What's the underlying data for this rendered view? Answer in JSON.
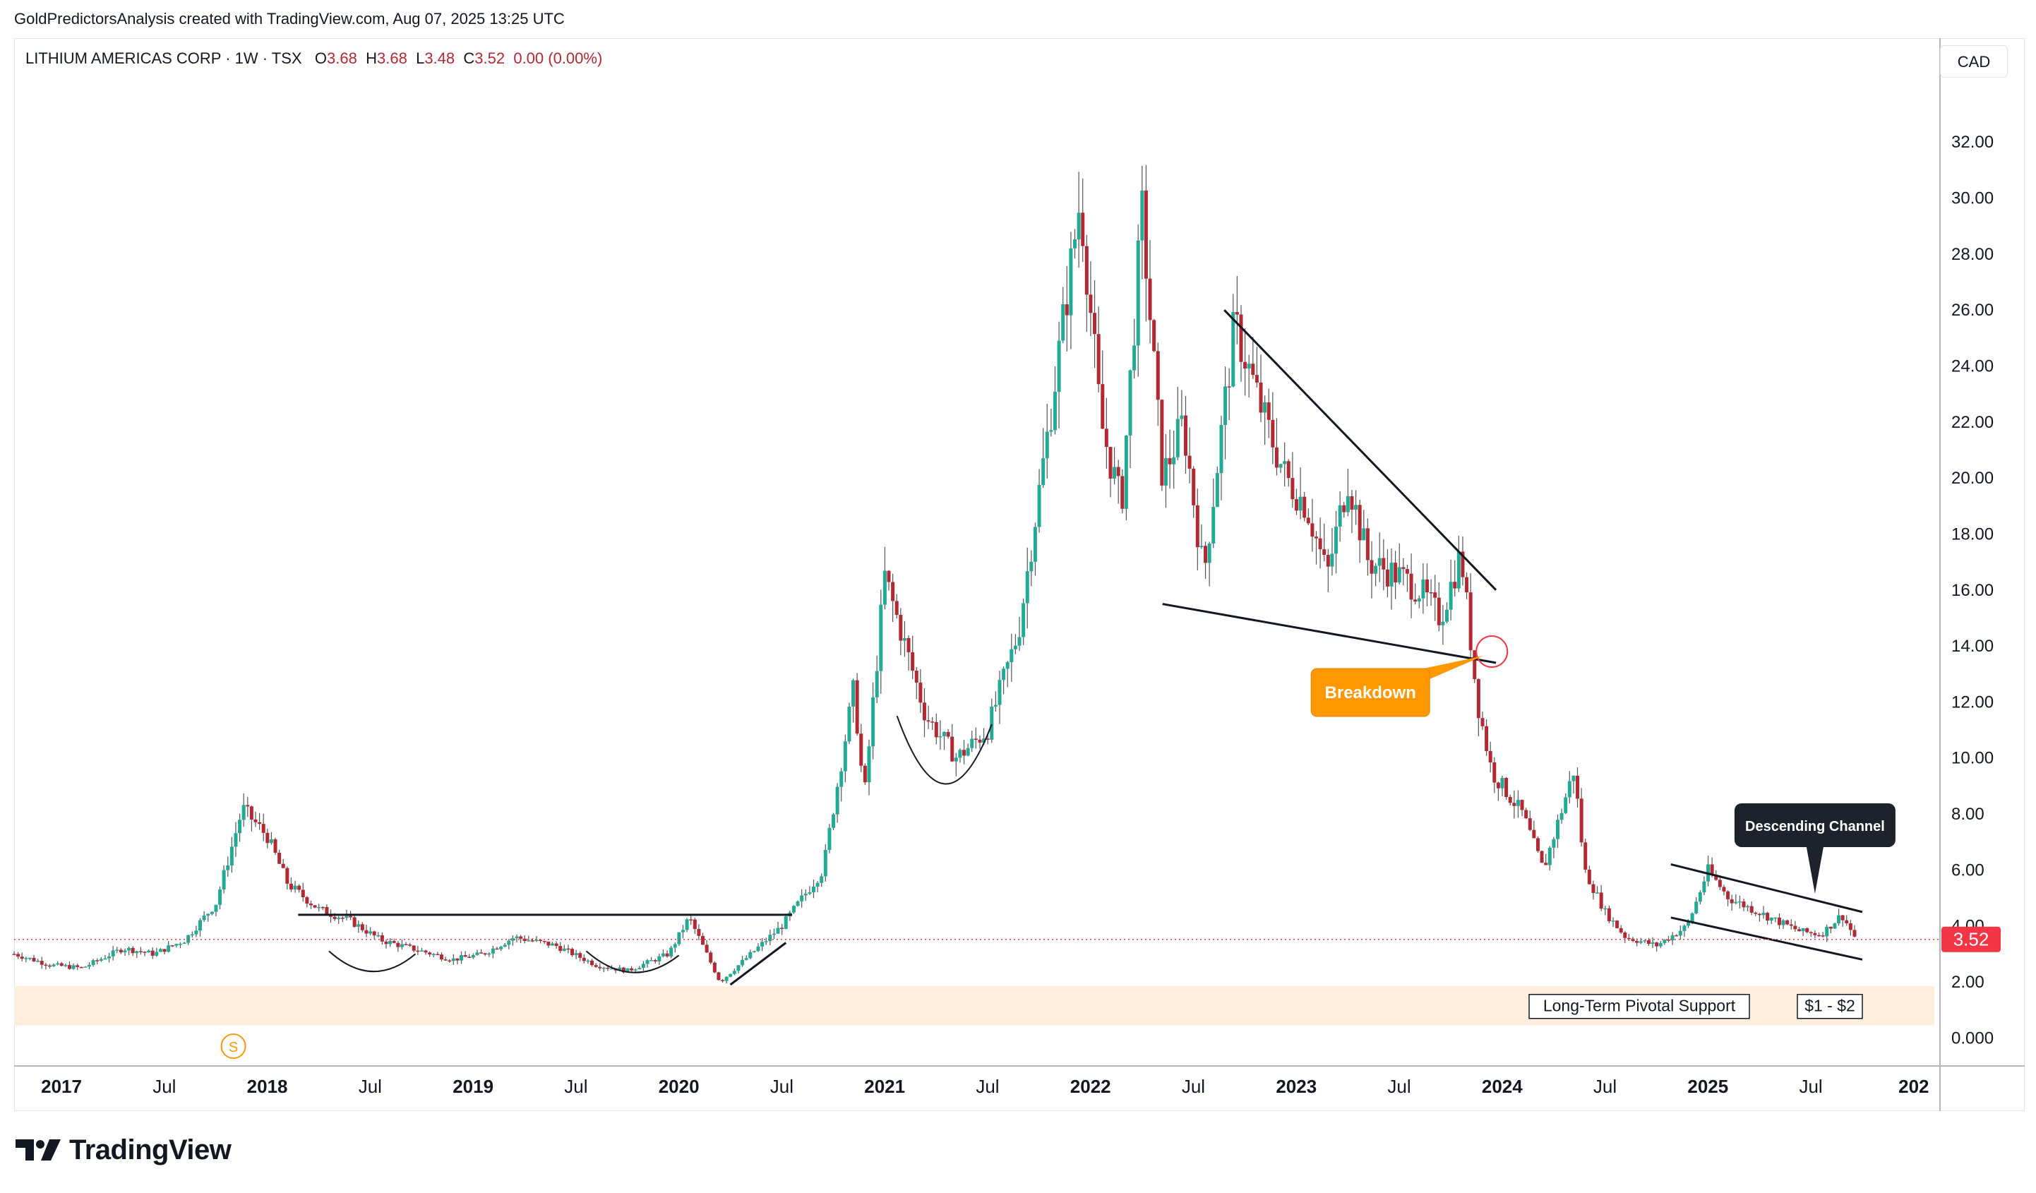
{
  "header": {
    "credit": "GoldPredictorsAnalysis created with TradingView.com, Aug 07, 2025 13:25 UTC"
  },
  "legend": {
    "symbol": "LITHIUM AMERICAS CORP · 1W · TSX",
    "open_label": "O",
    "open": "3.68",
    "high_label": "H",
    "high": "3.68",
    "low_label": "L",
    "low": "3.48",
    "close_label": "C",
    "close": "3.52",
    "change": "0.00 (0.00%)"
  },
  "toolbar": {
    "currency": "CAD"
  },
  "brand": {
    "name": "TradingView",
    "logo_icon": "tradingview-logo-icon"
  },
  "colors": {
    "up": "#22ab94",
    "down": "#b22833",
    "wick": "#555555",
    "price_line": "#f23645",
    "support_zone": "#fdeedd",
    "callout_orange": "#ff9800",
    "callout_dark": "#1e222d"
  },
  "chart_data": {
    "type": "candlestick",
    "title": "LITHIUM AMERICAS CORP · 1W · TSX",
    "xlabel": "",
    "ylabel": "",
    "x_ticks": [
      "2017",
      "Jul",
      "2018",
      "Jul",
      "2019",
      "Jul",
      "2020",
      "Jul",
      "2021",
      "Jul",
      "2022",
      "Jul",
      "2023",
      "Jul",
      "2024",
      "Jul",
      "2025",
      "Jul",
      "202"
    ],
    "x_tick_dates": [
      2017.0,
      2017.5,
      2018.0,
      2018.5,
      2019.0,
      2019.5,
      2020.0,
      2020.5,
      2021.0,
      2021.5,
      2022.0,
      2022.5,
      2023.0,
      2023.5,
      2024.0,
      2024.5,
      2025.0,
      2025.5,
      2026.0
    ],
    "y_ticks": [
      "0.000",
      "2.00",
      "4.00",
      "6.00",
      "8.00",
      "10.00",
      "12.00",
      "14.00",
      "16.00",
      "18.00",
      "20.00",
      "22.00",
      "24.00",
      "26.00",
      "28.00",
      "30.00",
      "32.00"
    ],
    "y_tick_values": [
      0,
      2,
      4,
      6,
      8,
      10,
      12,
      14,
      16,
      18,
      20,
      22,
      24,
      26,
      28,
      30,
      32
    ],
    "ylim": [
      -1.0,
      34.3
    ],
    "xlim": [
      2016.77,
      2026.1
    ],
    "current_price": 3.52,
    "current_price_label": "3.52",
    "price_path": [
      [
        2016.77,
        3.0
      ],
      [
        2016.95,
        2.6
      ],
      [
        2017.1,
        2.5
      ],
      [
        2017.3,
        3.2
      ],
      [
        2017.45,
        3.0
      ],
      [
        2017.6,
        3.5
      ],
      [
        2017.75,
        4.8
      ],
      [
        2017.88,
        8.2
      ],
      [
        2018.0,
        7.2
      ],
      [
        2018.1,
        5.5
      ],
      [
        2018.25,
        4.6
      ],
      [
        2018.4,
        4.2
      ],
      [
        2018.55,
        3.5
      ],
      [
        2018.7,
        3.2
      ],
      [
        2018.9,
        2.8
      ],
      [
        2019.05,
        3.0
      ],
      [
        2019.2,
        3.6
      ],
      [
        2019.4,
        3.3
      ],
      [
        2019.6,
        2.6
      ],
      [
        2019.75,
        2.4
      ],
      [
        2019.95,
        3.0
      ],
      [
        2020.05,
        4.3
      ],
      [
        2020.2,
        2.0
      ],
      [
        2020.35,
        3.0
      ],
      [
        2020.5,
        4.0
      ],
      [
        2020.7,
        6.0
      ],
      [
        2020.85,
        12.5
      ],
      [
        2020.9,
        8.5
      ],
      [
        2021.0,
        16.5
      ],
      [
        2021.08,
        14.5
      ],
      [
        2021.2,
        11.5
      ],
      [
        2021.35,
        10.0
      ],
      [
        2021.5,
        11.0
      ],
      [
        2021.65,
        14.5
      ],
      [
        2021.8,
        22.0
      ],
      [
        2021.95,
        30.0
      ],
      [
        2022.05,
        22.0
      ],
      [
        2022.15,
        19.0
      ],
      [
        2022.25,
        29.5
      ],
      [
        2022.35,
        20.0
      ],
      [
        2022.45,
        22.0
      ],
      [
        2022.55,
        16.5
      ],
      [
        2022.7,
        25.5
      ],
      [
        2022.85,
        22.0
      ],
      [
        2022.95,
        20.0
      ],
      [
        2023.05,
        19.0
      ],
      [
        2023.15,
        16.5
      ],
      [
        2023.25,
        20.0
      ],
      [
        2023.35,
        17.0
      ],
      [
        2023.5,
        16.5
      ],
      [
        2023.6,
        16.0
      ],
      [
        2023.7,
        15.0
      ],
      [
        2023.8,
        17.3
      ],
      [
        2023.88,
        12.0
      ],
      [
        2023.95,
        9.5
      ],
      [
        2024.1,
        8.0
      ],
      [
        2024.2,
        6.0
      ],
      [
        2024.35,
        9.6
      ],
      [
        2024.4,
        6.0
      ],
      [
        2024.5,
        4.5
      ],
      [
        2024.6,
        3.6
      ],
      [
        2024.75,
        3.3
      ],
      [
        2024.9,
        4.0
      ],
      [
        2025.0,
        6.0
      ],
      [
        2025.1,
        5.0
      ],
      [
        2025.3,
        4.3
      ],
      [
        2025.45,
        3.8
      ],
      [
        2025.55,
        3.7
      ],
      [
        2025.65,
        4.4
      ],
      [
        2025.72,
        3.52
      ]
    ],
    "trendlines": [
      {
        "name": "2019-2020 resistance",
        "from": [
          2018.15,
          4.4
        ],
        "to": [
          2020.55,
          4.4
        ]
      },
      {
        "name": "wedge upper",
        "from": [
          2022.65,
          26.0
        ],
        "to": [
          2023.97,
          16.0
        ]
      },
      {
        "name": "wedge lower",
        "from": [
          2022.35,
          15.5
        ],
        "to": [
          2023.97,
          13.4
        ]
      },
      {
        "name": "channel upper",
        "from": [
          2024.82,
          6.2
        ],
        "to": [
          2025.75,
          4.5
        ]
      },
      {
        "name": "channel lower",
        "from": [
          2024.82,
          4.3
        ],
        "to": [
          2025.75,
          2.8
        ]
      },
      {
        "name": "rebound ramp",
        "from": [
          2020.25,
          1.9
        ],
        "to": [
          2020.52,
          3.4
        ]
      }
    ],
    "arcs": [
      {
        "name": "base 2018-2019",
        "from": [
          2018.3,
          3.1
        ],
        "to": [
          2018.72,
          3.0
        ],
        "bottom": 2.35
      },
      {
        "name": "base 2019-2020",
        "from": [
          2019.55,
          3.1
        ],
        "to": [
          2020.0,
          2.95
        ],
        "bottom": 2.3
      },
      {
        "name": "cup 2021",
        "from": [
          2021.06,
          11.5
        ],
        "to": [
          2021.52,
          11.2
        ],
        "bottom": 9.0
      }
    ],
    "support_zone": {
      "label": "Long-Term Pivotal Support",
      "range_label": "$1 - $2",
      "from": 0.45,
      "to": 1.85
    },
    "annotations": [
      {
        "text": "Breakdown",
        "at": [
          2023.95,
          13.8
        ]
      },
      {
        "text": "Descending Channel",
        "at": [
          2025.52,
          4.8
        ]
      }
    ],
    "dividend_marker": {
      "label": "S",
      "x": 2018.0
    }
  }
}
